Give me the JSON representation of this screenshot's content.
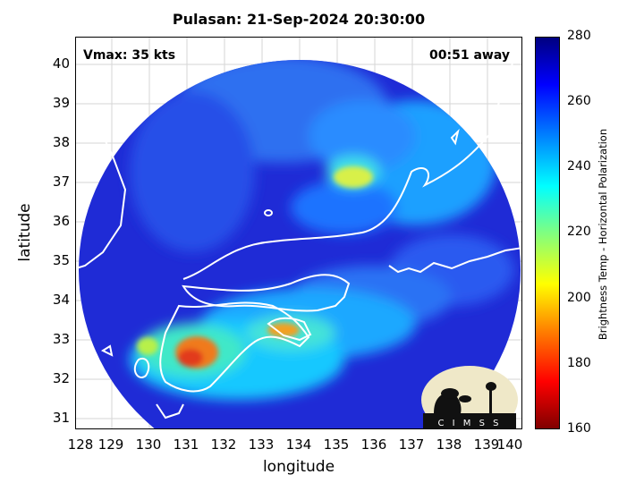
{
  "title": "Pulasan: 21-Sep-2024 20:30:00",
  "vmax_label": "Vmax: 35 kts",
  "away_label": "00:51 away",
  "xlabel": "longitude",
  "ylabel": "latitude",
  "colorbar_label": "Brightness Temp - Horizontal Polarization",
  "x_ticks": [
    "128",
    "129",
    "130",
    "131",
    "132",
    "133",
    "134",
    "135",
    "136",
    "137",
    "138",
    "139",
    "140"
  ],
  "y_ticks": [
    "40",
    "39",
    "38",
    "37",
    "36",
    "35",
    "34",
    "33",
    "32",
    "31"
  ],
  "cb_ticks": [
    "280",
    "260",
    "240",
    "220",
    "200",
    "180",
    "160"
  ],
  "logo_text": "CIMSS",
  "colors": {
    "background_blue": "#1f2bd6",
    "cold_red": "#e23b1a",
    "coast": "#ffffff"
  }
}
